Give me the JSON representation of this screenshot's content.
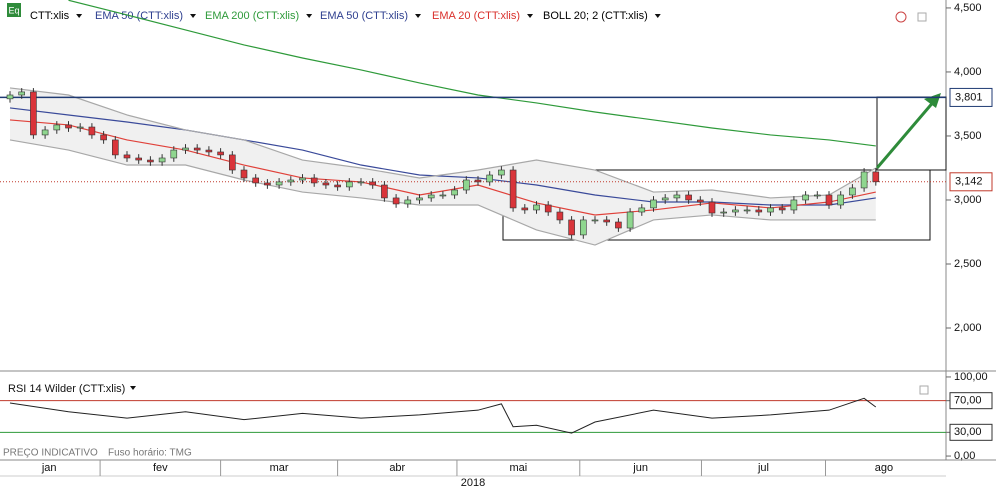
{
  "chart_data": {
    "type": "candlestick",
    "icon": "Eq",
    "legend": [
      {
        "name": "CTT:xlis",
        "color": "#000000"
      },
      {
        "name": "EMA 50 (CTT:xlis)",
        "color": "#2e3f8f"
      },
      {
        "name": "EMA 200 (CTT:xlis)",
        "color": "#2e9a3a"
      },
      {
        "name": "EMA 50 (CTT:xlis)",
        "color": "#2e3f8f"
      },
      {
        "name": "EMA 20 (CTT:xlis)",
        "color": "#d9302c"
      },
      {
        "name": "BOLL 20; 2 (CTT:xlis)",
        "color": "#000000"
      }
    ],
    "open": [
      3790,
      3820,
      3844,
      3508,
      3547,
      3586,
      3562,
      3570,
      3508,
      3469,
      3352,
      3328,
      3312,
      3297,
      3328,
      3390,
      3406,
      3390,
      3375,
      3352,
      3234,
      3172,
      3133,
      3117,
      3141,
      3156,
      3172,
      3133,
      3117,
      3102,
      3141,
      3141,
      3117,
      3016,
      2969,
      3000,
      3016,
      3039,
      3039,
      3078,
      3156,
      3141,
      3195,
      3234,
      2938,
      2922,
      2961,
      2906,
      2844,
      2727,
      2844,
      2844,
      2828,
      2781,
      2906,
      2938,
      3000,
      3016,
      3039,
      3000,
      2984,
      2898,
      2906,
      2922,
      2922,
      2906,
      2938,
      2922,
      3000,
      3039,
      3039,
      2961,
      3039,
      3094,
      3219
    ],
    "high": [
      3850,
      3874,
      3874,
      3577,
      3616,
      3616,
      3600,
      3600,
      3538,
      3499,
      3382,
      3358,
      3342,
      3358,
      3420,
      3436,
      3436,
      3420,
      3405,
      3382,
      3264,
      3202,
      3163,
      3171,
      3186,
      3202,
      3202,
      3163,
      3147,
      3171,
      3171,
      3171,
      3147,
      3046,
      3030,
      3046,
      3069,
      3069,
      3108,
      3186,
      3186,
      3225,
      3264,
      3264,
      2968,
      2991,
      2991,
      2936,
      2874,
      2874,
      2874,
      2874,
      2858,
      2936,
      2968,
      3030,
      3046,
      3069,
      3069,
      3030,
      3014,
      2936,
      2952,
      2952,
      2952,
      2968,
      2968,
      3030,
      3069,
      3069,
      3069,
      3069,
      3124,
      3249,
      3249
    ],
    "low": [
      3760,
      3790,
      3478,
      3478,
      3517,
      3532,
      3532,
      3478,
      3439,
      3322,
      3298,
      3282,
      3267,
      3267,
      3298,
      3360,
      3360,
      3345,
      3322,
      3204,
      3142,
      3103,
      3087,
      3087,
      3111,
      3126,
      3103,
      3087,
      3072,
      3072,
      3111,
      3087,
      2986,
      2939,
      2939,
      2970,
      2986,
      3009,
      3009,
      3048,
      3111,
      3111,
      3165,
      2908,
      2892,
      2892,
      2876,
      2814,
      2697,
      2697,
      2814,
      2798,
      2751,
      2751,
      2876,
      2908,
      2970,
      2986,
      2970,
      2954,
      2868,
      2868,
      2876,
      2892,
      2876,
      2876,
      2892,
      2892,
      2970,
      3009,
      2931,
      2931,
      3009,
      3064,
      3112
    ],
    "close": [
      3820,
      3844,
      3508,
      3547,
      3586,
      3562,
      3570,
      3508,
      3469,
      3352,
      3328,
      3312,
      3297,
      3328,
      3390,
      3406,
      3390,
      3375,
      3352,
      3234,
      3172,
      3133,
      3117,
      3141,
      3156,
      3172,
      3133,
      3117,
      3102,
      3141,
      3141,
      3117,
      3016,
      2969,
      3000,
      3016,
      3039,
      3039,
      3078,
      3156,
      3141,
      3195,
      3234,
      2938,
      2922,
      2961,
      2906,
      2844,
      2727,
      2844,
      2844,
      2828,
      2781,
      2906,
      2938,
      3000,
      3016,
      3039,
      3000,
      2984,
      2898,
      2906,
      2922,
      2922,
      2906,
      2938,
      2922,
      3000,
      3039,
      3039,
      2961,
      3039,
      3094,
      3219,
      3142
    ],
    "up_color": "#8fd68f",
    "down_color": "#d9343a",
    "line_x": [
      0,
      5,
      10,
      15,
      20,
      25,
      30,
      35,
      40,
      45,
      50,
      55,
      60,
      65,
      70,
      74
    ],
    "lines": [
      {
        "color": "#2e9a3a",
        "values": [
          null,
          4560,
          4445,
          4328,
          4211,
          4109,
          4016,
          3914,
          3820,
          3758,
          3687,
          3625,
          3562,
          3508,
          3469,
          3422
        ]
      },
      {
        "color": "#3a4a9a",
        "values": [
          3719,
          3664,
          3609,
          3547,
          3469,
          3390,
          3273,
          3195,
          3172,
          3117,
          3039,
          2984,
          2984,
          2961,
          2961,
          3016
        ]
      },
      {
        "color": "#e0413a",
        "values": [
          3625,
          3586,
          3469,
          3390,
          3273,
          3172,
          3141,
          3039,
          3117,
          2977,
          2883,
          2922,
          2977,
          2938,
          2984,
          3062
        ]
      },
      {
        "color": "#a8a8a8",
        "values": [
          3875,
          3820,
          3664,
          3547,
          3469,
          3312,
          3250,
          3172,
          3234,
          3312,
          3234,
          3062,
          3078,
          3016,
          3039,
          3250
        ]
      },
      {
        "color": "#a8a8a8",
        "values": [
          3469,
          3390,
          3273,
          3273,
          3156,
          3062,
          3016,
          2961,
          2961,
          2766,
          2648,
          2844,
          2883,
          2844,
          2844,
          2844
        ]
      }
    ],
    "ylim": [
      1672,
      4562
    ],
    "yticks": [
      {
        "value": 2000,
        "label": "2,000"
      },
      {
        "value": 2500,
        "label": "2,500"
      },
      {
        "value": 3000,
        "label": "3,000"
      },
      {
        "value": 3500,
        "label": "3,500"
      },
      {
        "value": 4000,
        "label": "4,000"
      },
      {
        "value": 4500,
        "label": "4,500"
      }
    ],
    "price_lines": [
      {
        "value": 3801,
        "label": "3,801",
        "color": "#1f3a73",
        "style": "solid"
      },
      {
        "value": 3142,
        "label": "3,142",
        "color": "#c0392b",
        "style": "dotted"
      }
    ],
    "rsi": {
      "title": "RSI 14 Wilder (CTT:xlis)",
      "x": [
        0,
        5,
        10,
        15,
        20,
        25,
        30,
        35,
        40,
        42,
        43,
        45,
        48,
        50,
        55,
        60,
        65,
        70,
        73,
        74
      ],
      "values": [
        67,
        56,
        48,
        56,
        46,
        54,
        48,
        52,
        58,
        66,
        37,
        39,
        29,
        43,
        58,
        48,
        52,
        58,
        73,
        62
      ],
      "color": "#222222",
      "ylim": [
        -5,
        105
      ],
      "yticks": [
        {
          "value": 0,
          "label": "0,00"
        },
        {
          "value": 30,
          "label": "30,00",
          "color": "#2e9a3a"
        },
        {
          "value": 70,
          "label": "70,00",
          "color": "#c0392b"
        },
        {
          "value": 100,
          "label": "100,00"
        }
      ]
    },
    "months": [
      "jan",
      "fev",
      "mar",
      "abr",
      "mai",
      "jun",
      "jul",
      "ago"
    ],
    "month_starts": [
      -1,
      7.7,
      18,
      28,
      38.2,
      48.7,
      59.1,
      69.7
    ],
    "year": "2018",
    "footer": [
      "PREÇO INDICATIVO",
      "Fuso horário: TMG"
    ]
  }
}
